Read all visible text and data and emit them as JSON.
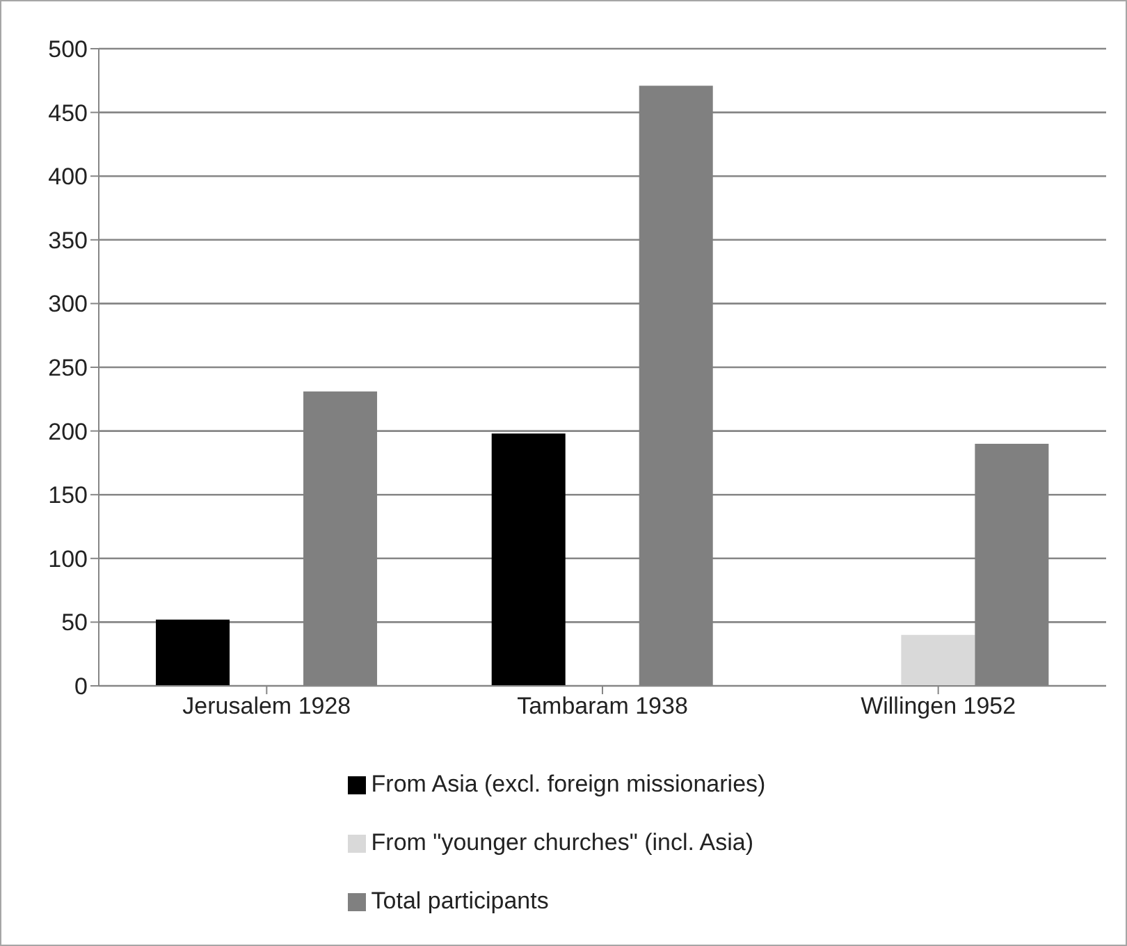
{
  "chart_data": {
    "type": "bar",
    "categories": [
      "Jerusalem 1928",
      "Tambaram 1938",
      "Willingen 1952"
    ],
    "series": [
      {
        "name": "From Asia (excl. foreign missionaries)",
        "color": "#000000",
        "values": [
          52,
          198,
          null
        ]
      },
      {
        "name": "From \"younger churches\" (incl. Asia)",
        "color": "#d9d9d9",
        "values": [
          null,
          null,
          40
        ]
      },
      {
        "name": "Total participants",
        "color": "#808080",
        "values": [
          231,
          471,
          190
        ]
      }
    ],
    "ylim": [
      0,
      500
    ],
    "yticks": [
      0,
      50,
      100,
      150,
      200,
      250,
      300,
      350,
      400,
      450,
      500
    ],
    "grid": "y",
    "legend": "bottom"
  }
}
